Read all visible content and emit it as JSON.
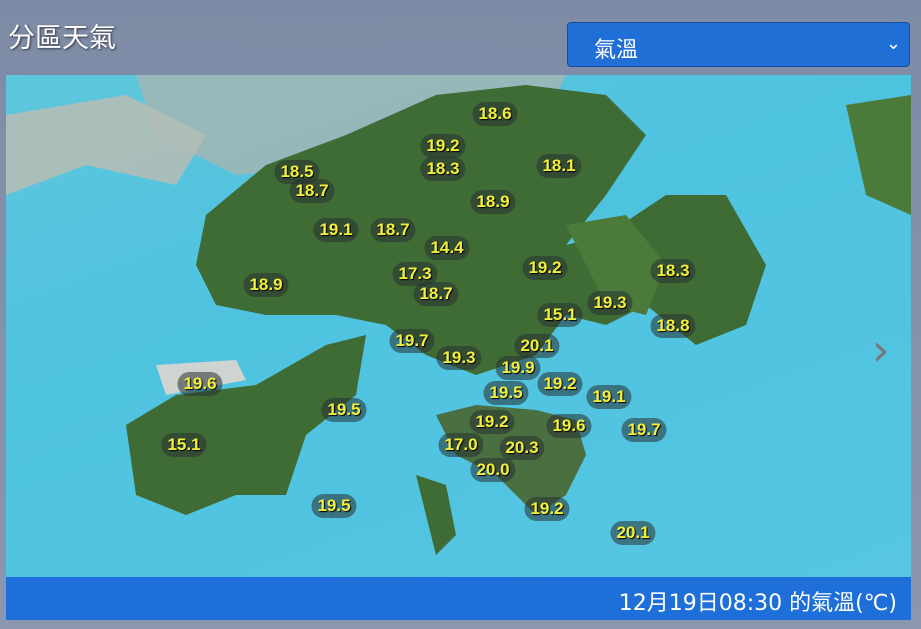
{
  "header": {
    "title": "分區天氣",
    "select_value": "氣溫"
  },
  "map": {
    "temperatures": [
      "18.6",
      "19.2",
      "18.3",
      "18.1",
      "18.5",
      "18.7",
      "18.9",
      "19.1",
      "18.7",
      "14.4",
      "19.2",
      "17.3",
      "18.3",
      "18.9",
      "18.7",
      "19.3",
      "15.1",
      "18.8",
      "19.7",
      "20.1",
      "19.3",
      "19.9",
      "19.6",
      "19.2",
      "19.5",
      "19.1",
      "19.5",
      "19.2",
      "19.6",
      "19.7",
      "15.1",
      "17.0",
      "20.3",
      "20.0",
      "19.5",
      "19.2",
      "20.1"
    ],
    "label_color": "#f4f03a",
    "sea_color": "#4ec3e0",
    "land_color": "#3f6b34"
  },
  "footer": {
    "caption": "12月19日08:30 的氣溫(℃)"
  }
}
